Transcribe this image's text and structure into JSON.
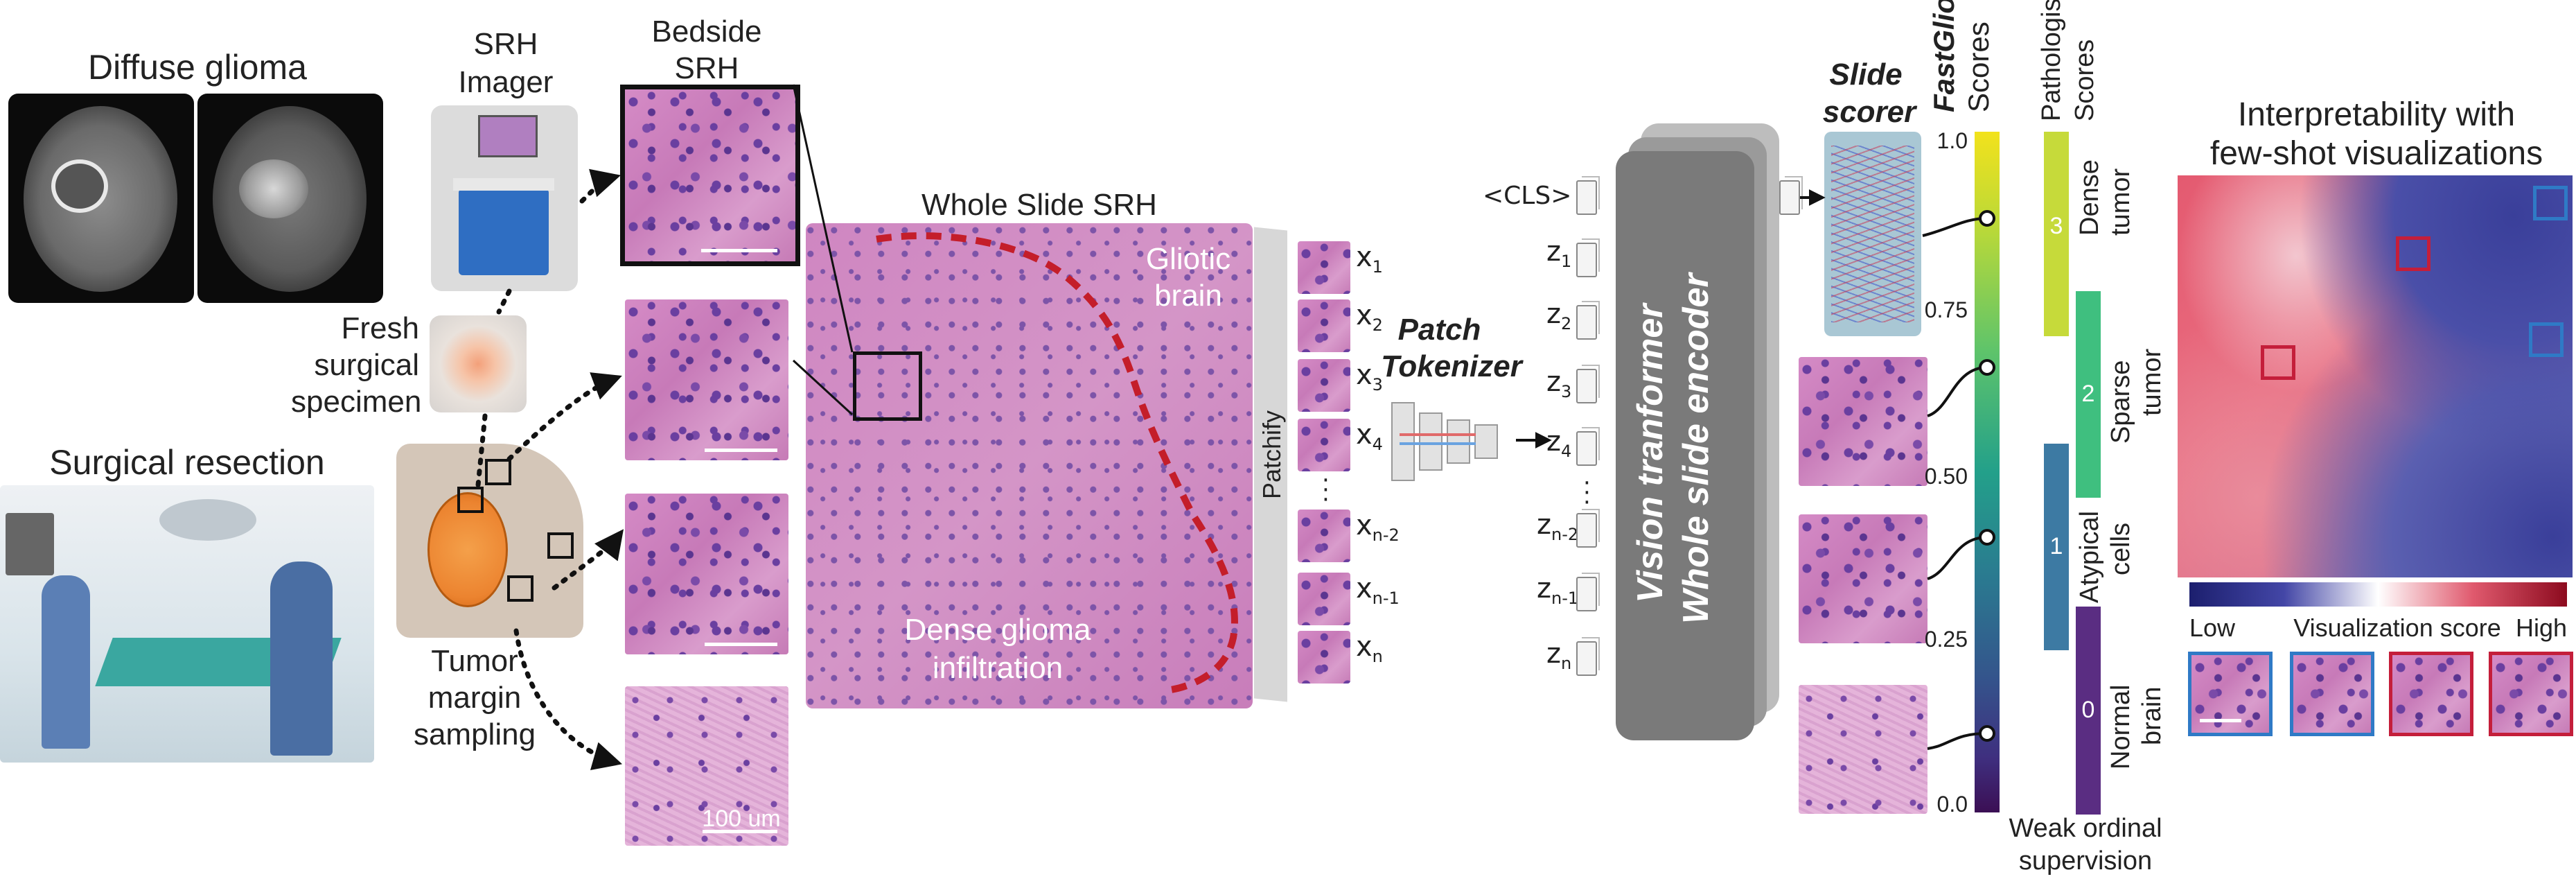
{
  "mri": {
    "title": "Diffuse glioma"
  },
  "imager": {
    "title_line1": "SRH",
    "title_line2": "Imager"
  },
  "specimen": {
    "line1": "Fresh",
    "line2": "surgical",
    "line3": "specimen"
  },
  "resection": {
    "title": "Surgical resection"
  },
  "margin": {
    "line1": "Tumor",
    "line2": "margin",
    "line3": "sampling"
  },
  "bedside": {
    "line1": "Bedside",
    "line2": "SRH",
    "scale": "100 um"
  },
  "wsi": {
    "title": "Whole Slide SRH",
    "gliotic_line1": "Gliotic",
    "gliotic_line2": "brain",
    "dense_line1": "Dense glioma",
    "dense_line2": "infiltration"
  },
  "patchify": {
    "label": "Patchify"
  },
  "patches": {
    "labels": [
      {
        "base": "x",
        "sub": "1"
      },
      {
        "base": "x",
        "sub": "2"
      },
      {
        "base": "x",
        "sub": "3"
      },
      {
        "base": "x",
        "sub": "4"
      },
      {
        "base": "x",
        "sub": "n-2"
      },
      {
        "base": "x",
        "sub": "n-1"
      },
      {
        "base": "x",
        "sub": "n"
      }
    ]
  },
  "tokenizer": {
    "line1": "Patch",
    "line2": "Tokenizer"
  },
  "tokens": {
    "cls": "<CLS>",
    "labels": [
      {
        "base": "z",
        "sub": "1"
      },
      {
        "base": "z",
        "sub": "2"
      },
      {
        "base": "z",
        "sub": "3"
      },
      {
        "base": "z",
        "sub": "4"
      },
      {
        "base": "z",
        "sub": "n-2"
      },
      {
        "base": "z",
        "sub": "n-1"
      },
      {
        "base": "z",
        "sub": "n"
      }
    ]
  },
  "encoder": {
    "line1": "Vision tranformer",
    "line2": "Whole slide encoder"
  },
  "scorer": {
    "line1": "Slide",
    "line2": "scorer"
  },
  "scores": {
    "fast_title": "FastGlioma",
    "fast_sub": "Scores",
    "ticks": [
      "1.0",
      "0.75",
      "0.50",
      "0.25",
      "0.0"
    ],
    "path_title_line1": "Pathologists'",
    "path_title_line2": "Scores",
    "categories": [
      {
        "num": "3",
        "line1": "Dense",
        "line2": "tumor",
        "color": "#c6da3a"
      },
      {
        "num": "2",
        "line1": "Sparse",
        "line2": "tumor",
        "color": "#3fbf7f"
      },
      {
        "num": "1",
        "line1": "Atypical",
        "line2": "cells",
        "color": "#3d7aa3"
      },
      {
        "num": "0",
        "line1": "Normal",
        "line2": "brain",
        "color": "#5a2d82"
      }
    ],
    "supervision_line1": "Weak ordinal",
    "supervision_line2": "supervision"
  },
  "interp": {
    "title_line1": "Interpretability with",
    "title_line2": "few-shot visualizations",
    "low": "Low",
    "mid": "Visualization score",
    "high": "High",
    "low_color": "#2b2f86",
    "high_color": "#c41e3a"
  }
}
